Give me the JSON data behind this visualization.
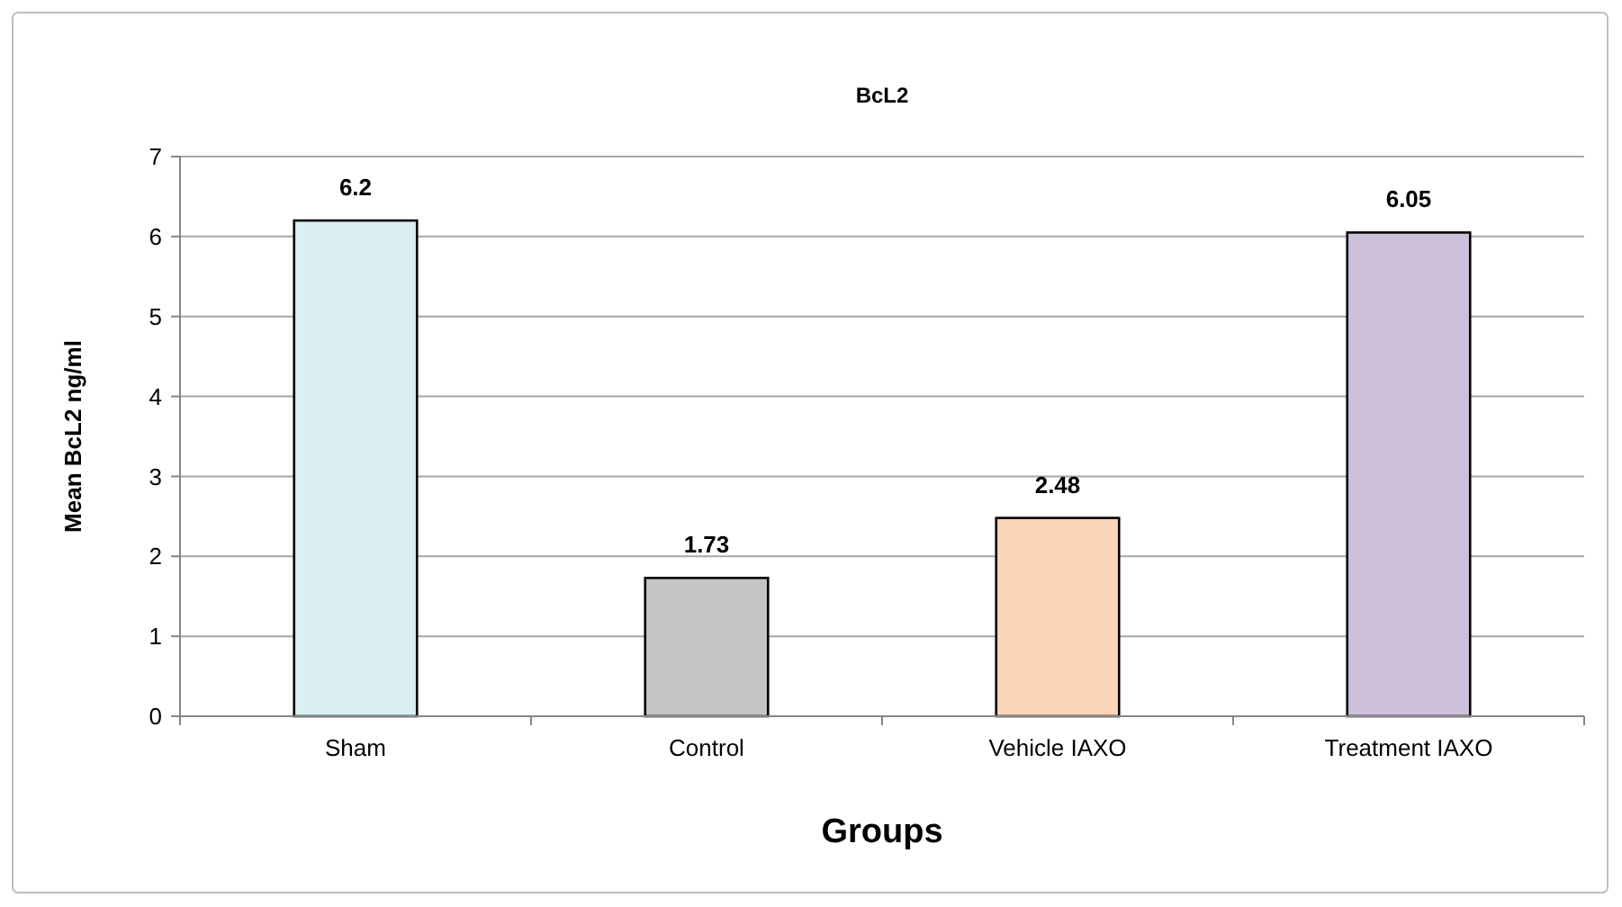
{
  "chart_data": {
    "type": "bar",
    "title": "BcL2",
    "xlabel": "Groups",
    "ylabel": "Mean BcL2 ng/ml",
    "categories": [
      "Sham",
      "Control",
      "Vehicle IAXO",
      "Treatment IAXO"
    ],
    "values": [
      6.2,
      1.73,
      2.48,
      6.05
    ],
    "colors": [
      "#daeef3",
      "#c4c4c4",
      "#fbd5b5",
      "#ccc0da"
    ],
    "ylim": [
      0,
      7
    ],
    "yticks": [
      0,
      1,
      2,
      3,
      4,
      5,
      6,
      7
    ],
    "grid": "y",
    "data_labels": true
  }
}
